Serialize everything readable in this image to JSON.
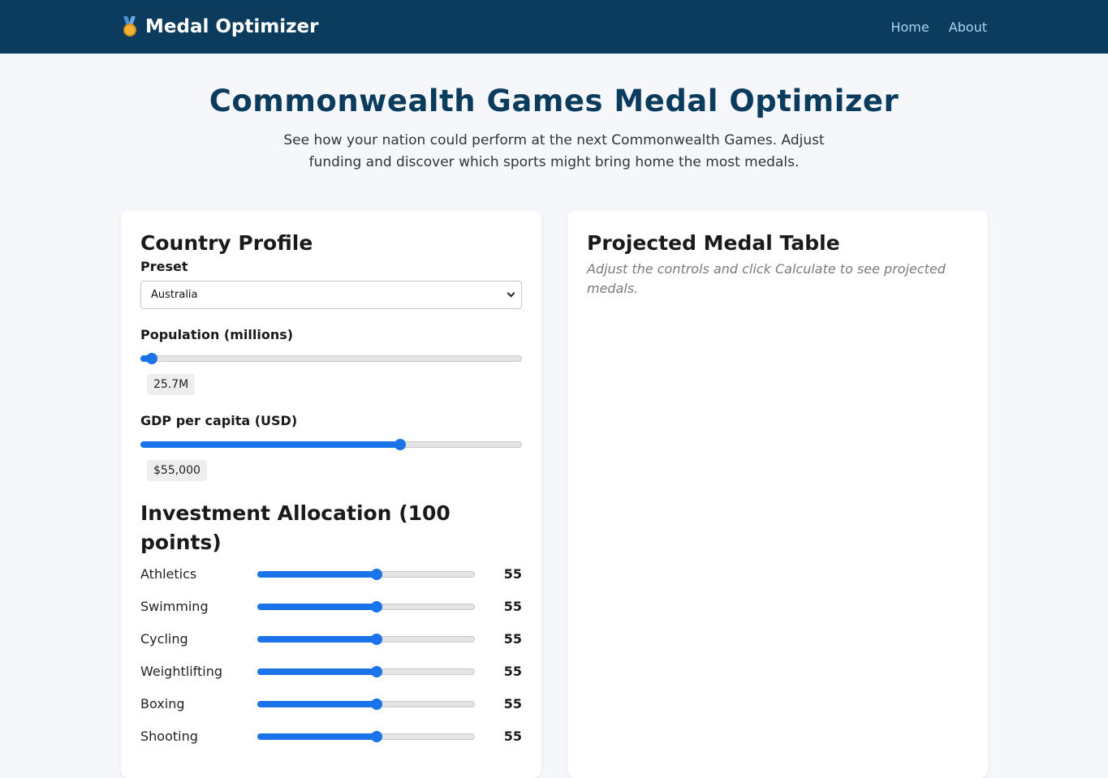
{
  "nav": {
    "brand": "Medal Optimizer",
    "brand_icon": "medal-icon",
    "links": [
      "Home",
      "About"
    ]
  },
  "hero": {
    "title": "Commonwealth Games Medal Optimizer",
    "subtitle": "See how your nation could perform at the next Commonwealth Games. Adjust funding and discover which sports might bring home the most medals."
  },
  "country": {
    "title": "Country Profile",
    "preset_label": "Preset",
    "preset_value": "Australia",
    "population_label": "Population (millions)",
    "population_value": "25.7M",
    "population_fraction": 0.03,
    "gdp_label": "GDP per capita (USD)",
    "gdp_value": "$55,000",
    "gdp_fraction": 0.68
  },
  "investment": {
    "title": "Investment Allocation (100 points)",
    "sports": [
      {
        "name": "Athletics",
        "value": "55",
        "fraction": 0.55
      },
      {
        "name": "Swimming",
        "value": "55",
        "fraction": 0.55
      },
      {
        "name": "Cycling",
        "value": "55",
        "fraction": 0.55
      },
      {
        "name": "Weightlifting",
        "value": "55",
        "fraction": 0.55
      },
      {
        "name": "Boxing",
        "value": "55",
        "fraction": 0.55
      },
      {
        "name": "Shooting",
        "value": "55",
        "fraction": 0.55
      }
    ]
  },
  "results": {
    "title": "Projected Medal Table",
    "placeholder": "Adjust the controls and click Calculate to see projected medals."
  },
  "colors": {
    "navbar": "#0b3c5d",
    "accent": "#1a73e8",
    "heading": "#0b3c5d"
  }
}
